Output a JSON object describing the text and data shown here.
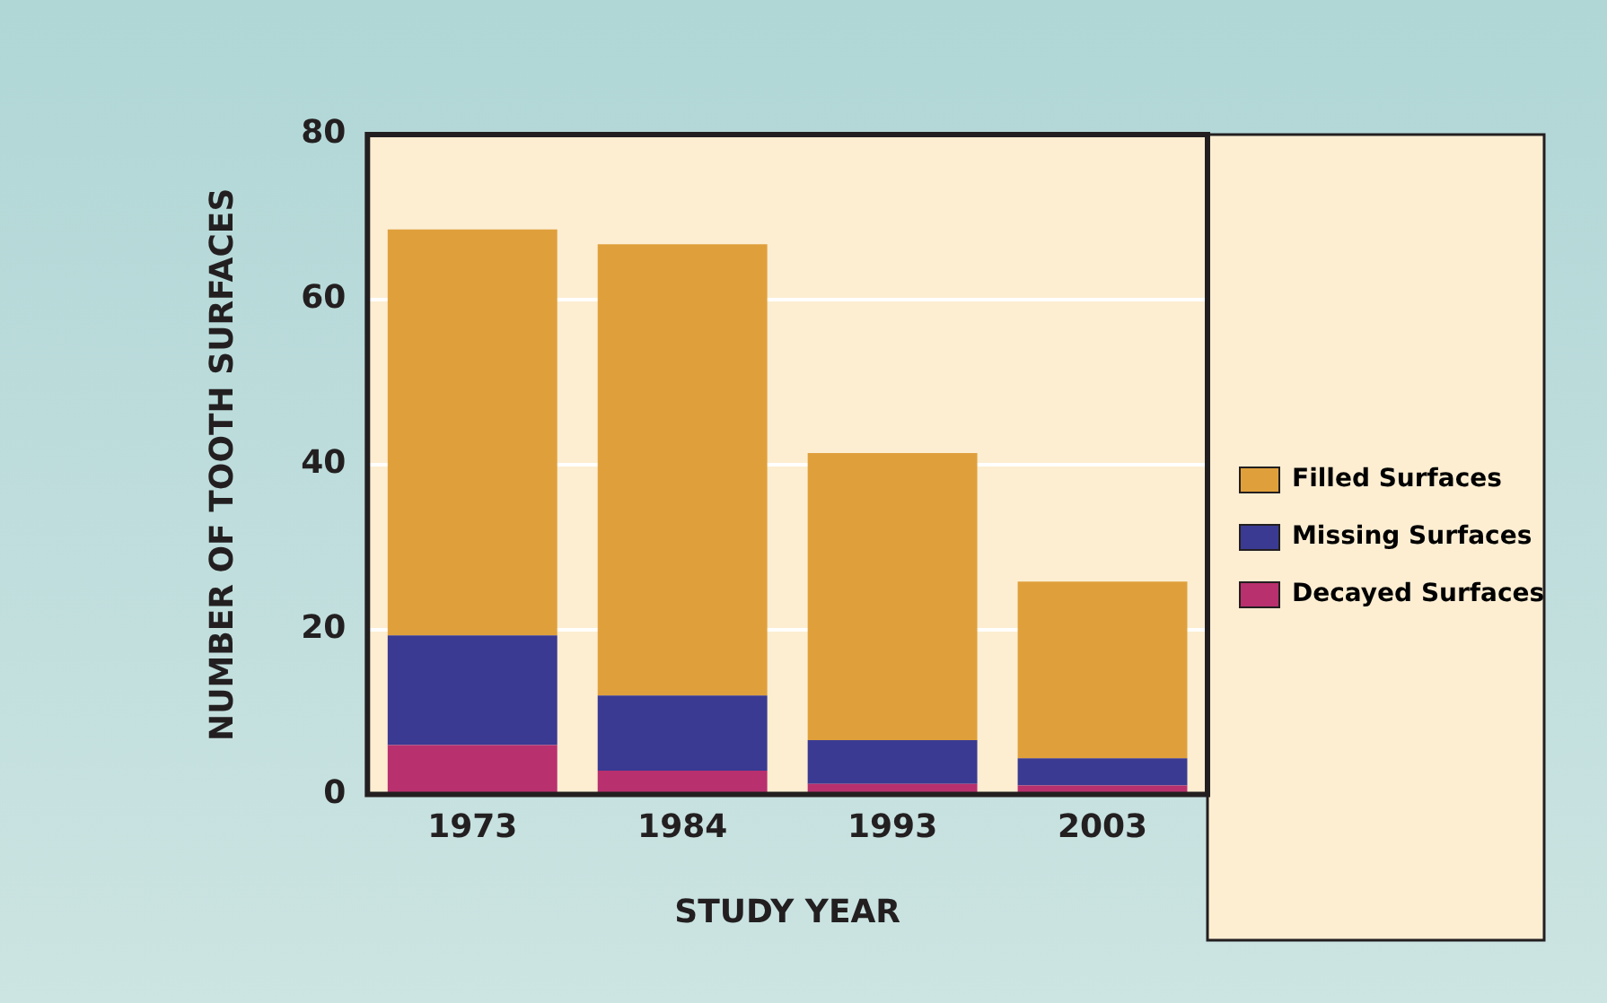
{
  "chart_data": {
    "type": "bar",
    "stacked": true,
    "xlabel": "STUDY YEAR",
    "ylabel": "NUMBER OF TOOTH SURFACES",
    "categories": [
      "1973",
      "1984",
      "1993",
      "2003"
    ],
    "series": [
      {
        "name": "Decayed Surfaces",
        "color": "#b8306e",
        "values": [
          6.0,
          2.9,
          1.3,
          1.1
        ]
      },
      {
        "name": "Missing Surfaces",
        "color": "#3a3a92",
        "values": [
          13.3,
          9.1,
          5.3,
          3.3
        ]
      },
      {
        "name": "Filled Surfaces",
        "color": "#dfa03c",
        "values": [
          49.2,
          54.7,
          34.8,
          21.4
        ]
      }
    ],
    "ylim": [
      0,
      80
    ],
    "yticks": [
      0,
      20,
      40,
      60,
      80
    ],
    "grid": "y",
    "legend": "right"
  }
}
